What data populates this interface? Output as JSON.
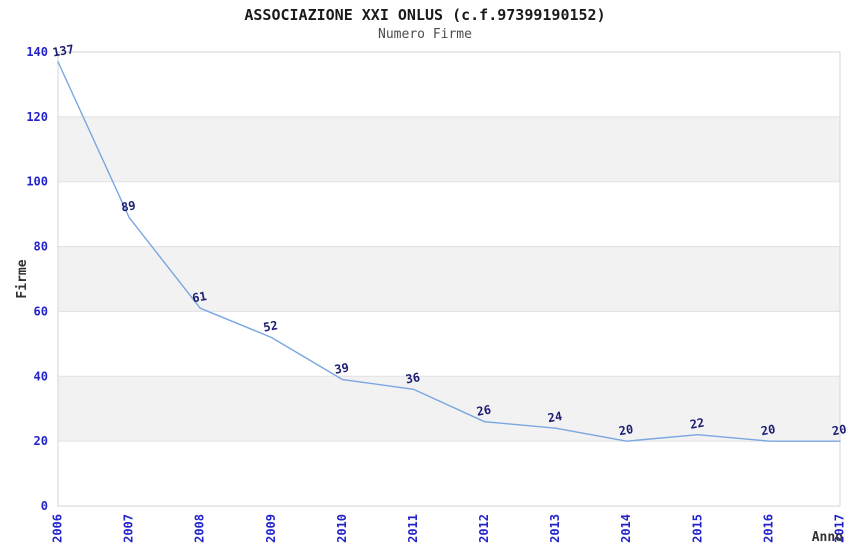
{
  "chart_data": {
    "type": "line",
    "title": "ASSOCIAZIONE XXI ONLUS (c.f.97399190152)",
    "subtitle": "Numero Firme",
    "xlabel": "Anno",
    "ylabel": "Firme",
    "categories": [
      "2006",
      "2007",
      "2008",
      "2009",
      "2010",
      "2011",
      "2012",
      "2013",
      "2014",
      "2015",
      "2016",
      "2017"
    ],
    "values": [
      137,
      89,
      61,
      52,
      39,
      36,
      26,
      24,
      20,
      22,
      20,
      20
    ],
    "data_labels_visible": true,
    "ylim": [
      0,
      140
    ],
    "ytick_step": 20,
    "yticks": [
      0,
      20,
      40,
      60,
      80,
      100,
      120,
      140
    ],
    "grid": "horizontal gridlines with alternating shaded bands",
    "legend": "none",
    "x_tick_rotation_deg": -90,
    "colors": {
      "line": "#7aa7e0",
      "tick_label": "#2323cc",
      "data_label": "#1d1d73",
      "band": "#f2f2f2",
      "grid": "#e1e1e1",
      "border": "#d6d6d6",
      "title": "#1a1a1a",
      "subtitle": "#4d4d4d",
      "axis_title": "#333333",
      "background": "#ffffff"
    }
  }
}
